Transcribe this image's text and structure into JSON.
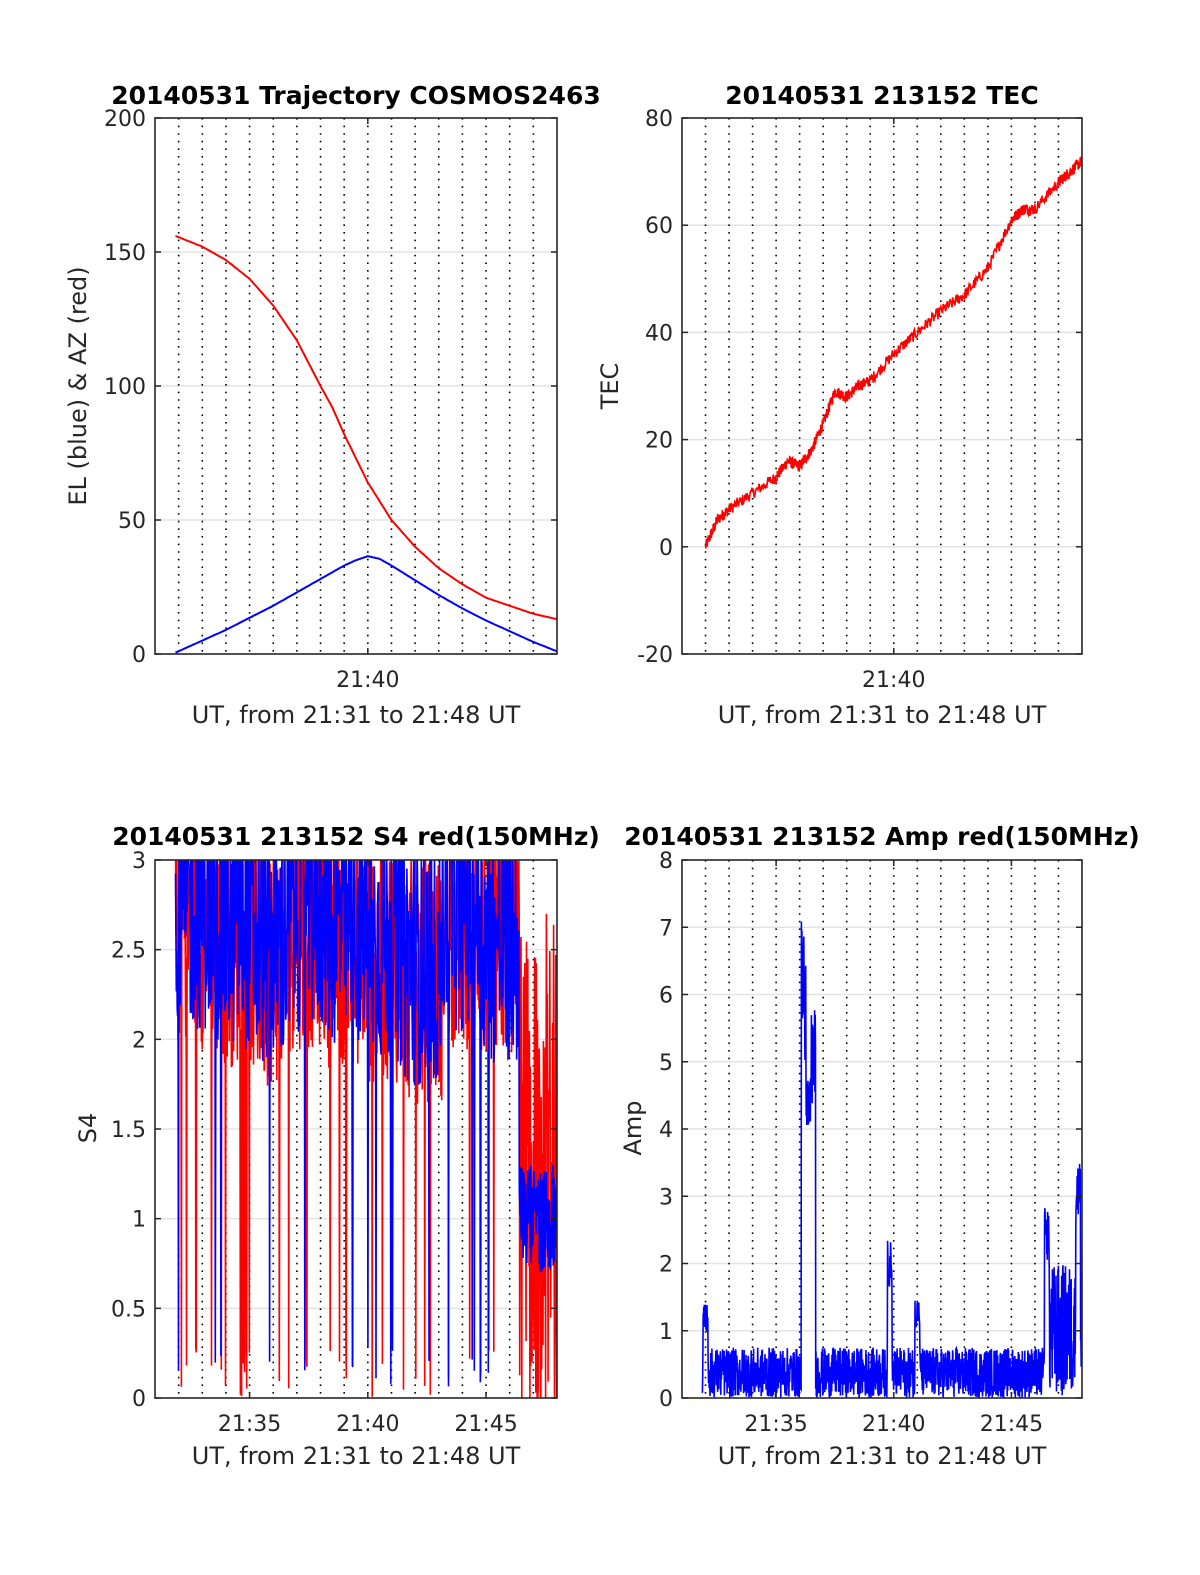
{
  "chart_data": [
    {
      "type": "line",
      "title": "20140531 Trajectory COSMOS2463",
      "xlabel": "UT, from 21:31 to 21:48 UT",
      "ylabel": "EL (blue) & AZ (red)",
      "xlim": [
        "21:31",
        "21:48"
      ],
      "ylim": [
        0,
        200
      ],
      "xticks": [
        "21:40"
      ],
      "yticks": [
        0,
        50,
        100,
        150,
        200
      ],
      "grid": "dotted",
      "series": [
        {
          "name": "AZ (red)",
          "color": "#ff0000",
          "x": [
            "21:31:52",
            "21:33:00",
            "21:34:00",
            "21:35:00",
            "21:36:00",
            "21:37:00",
            "21:38:00",
            "21:38:30",
            "21:39:00",
            "21:39:30",
            "21:40:00",
            "21:40:30",
            "21:41:00",
            "21:42:00",
            "21:43:00",
            "21:44:00",
            "21:45:00",
            "21:46:00",
            "21:47:00",
            "21:48:00"
          ],
          "values": [
            156,
            152,
            147,
            140,
            130,
            117,
            100,
            92,
            82,
            73,
            64,
            57,
            50,
            40,
            32,
            26,
            21,
            18,
            15,
            13
          ]
        },
        {
          "name": "EL (blue)",
          "color": "#0000ff",
          "x": [
            "21:31:52",
            "21:33:00",
            "21:34:00",
            "21:35:00",
            "21:36:00",
            "21:37:00",
            "21:38:00",
            "21:39:00",
            "21:39:30",
            "21:40:00",
            "21:40:30",
            "21:41:00",
            "21:42:00",
            "21:43:00",
            "21:44:00",
            "21:45:00",
            "21:46:00",
            "21:47:00",
            "21:48:00"
          ],
          "values": [
            0.5,
            5,
            9,
            13.5,
            18,
            23,
            28,
            33,
            35,
            36.5,
            35.5,
            33,
            27.5,
            22,
            17,
            12.5,
            8.5,
            4.5,
            1
          ]
        }
      ]
    },
    {
      "type": "line",
      "title": "20140531 213152 TEC",
      "xlabel": "UT, from 21:31 to 21:48 UT",
      "ylabel": "TEC",
      "xlim": [
        "21:31",
        "21:48"
      ],
      "ylim": [
        -20,
        80
      ],
      "xticks": [
        "21:40"
      ],
      "yticks": [
        -20,
        0,
        20,
        40,
        60,
        80
      ],
      "grid": "dotted",
      "series": [
        {
          "name": "",
          "color": "#ff0000",
          "x": [
            "21:32:00",
            "21:32:30",
            "21:33:00",
            "21:34:00",
            "21:35:00",
            "21:35:30",
            "21:36:00",
            "21:36:30",
            "21:37:00",
            "21:37:30",
            "21:38:00",
            "21:38:30",
            "21:39:00",
            "21:40:00",
            "21:41:00",
            "21:42:00",
            "21:43:00",
            "21:44:00",
            "21:45:00",
            "21:45:30",
            "21:46:00",
            "21:47:00",
            "21:47:30",
            "21:48:00"
          ],
          "values": [
            0,
            5,
            7,
            10,
            13,
            16,
            15,
            18,
            23,
            29,
            28,
            30,
            31,
            36,
            40,
            44,
            47,
            52,
            61,
            63,
            63,
            68,
            70,
            72
          ]
        }
      ]
    },
    {
      "type": "line",
      "title": "20140531 213152 S4 red(150MHz)",
      "xlabel": "UT, from 21:31 to 21:48 UT",
      "ylabel": "S4",
      "xlim": [
        "21:31",
        "21:48"
      ],
      "ylim": [
        0,
        3
      ],
      "xticks": [
        "21:35",
        "21:40",
        "21:45"
      ],
      "yticks": [
        0,
        0.5,
        1,
        1.5,
        2,
        2.5,
        3
      ],
      "grid": "dotted",
      "series": [
        {
          "name": "",
          "color": "#ff0000",
          "noise_level": [
            2.5,
            2.4,
            2.3,
            2.5,
            2.4,
            2.3,
            2.2,
            2.5,
            2.4,
            1.2
          ]
        },
        {
          "name": "",
          "color": "#0000ff",
          "noise_level": [
            2.6,
            2.5,
            2.4,
            2.6,
            2.5,
            2.4,
            2.3,
            2.6,
            2.4,
            1.0
          ]
        }
      ]
    },
    {
      "type": "line",
      "title": "20140531 213152 Amp red(150MHz)",
      "xlabel": "UT, from 21:31 to 21:48 UT",
      "ylabel": "Amp",
      "xlim": [
        "21:31",
        "21:48"
      ],
      "ylim": [
        0,
        8
      ],
      "xticks": [
        "21:35",
        "21:40",
        "21:45"
      ],
      "yticks": [
        0,
        1,
        2,
        3,
        4,
        5,
        6,
        7,
        8
      ],
      "grid": "dotted",
      "series": [
        {
          "name": "",
          "color": "#0000ff",
          "peaks": [
            {
              "t": "21:32:00",
              "v": 1.4
            },
            {
              "t": "21:36:10",
              "v": 7.1
            },
            {
              "t": "21:36:35",
              "v": 5.8
            },
            {
              "t": "21:39:50",
              "v": 2.35
            },
            {
              "t": "21:41:00",
              "v": 1.5
            },
            {
              "t": "21:46:30",
              "v": 2.9
            },
            {
              "t": "21:47:50",
              "v": 3.6
            }
          ]
        }
      ]
    }
  ]
}
